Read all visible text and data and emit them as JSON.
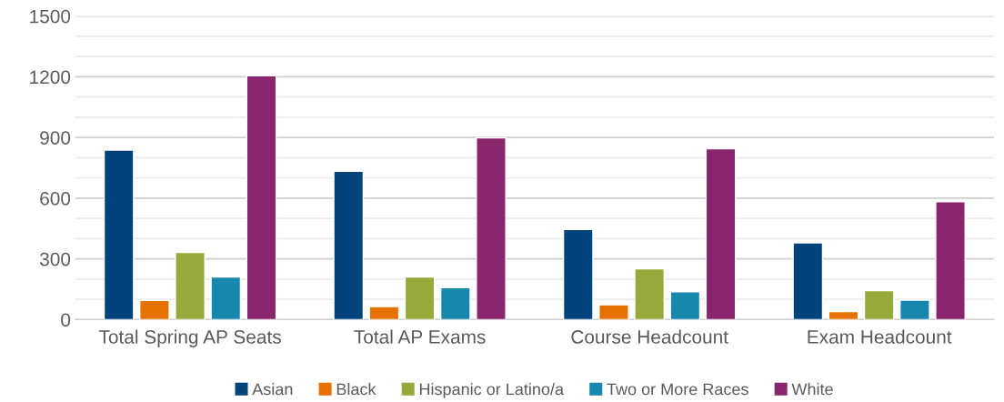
{
  "chart_data": {
    "type": "bar",
    "categories": [
      "Total Spring AP Seats",
      "Total AP Exams",
      "Course Headcount",
      "Exam Headcount"
    ],
    "series": [
      {
        "name": "Asian",
        "color": "#00427a",
        "values": [
          838,
          733,
          445,
          379
        ]
      },
      {
        "name": "Black",
        "color": "#e57200",
        "values": [
          95,
          64,
          73,
          40
        ]
      },
      {
        "name": "Hispanic or Latino/a",
        "color": "#97a93b",
        "values": [
          332,
          211,
          251,
          143
        ]
      },
      {
        "name": "Two or More Races",
        "color": "#1887ae",
        "values": [
          211,
          158,
          138,
          96
        ]
      },
      {
        "name": "White",
        "color": "#88256c",
        "values": [
          1205,
          898,
          844,
          582
        ]
      }
    ],
    "ylim": [
      0,
      1500
    ],
    "yticks": [
      0,
      {
        "value": 100,
        "label": null
      },
      {
        "value": 200,
        "label": null
      },
      300,
      {
        "value": 400,
        "label": null
      },
      {
        "value": 500,
        "label": null
      },
      600,
      {
        "value": 700,
        "label": null
      },
      {
        "value": 800,
        "label": null
      },
      900,
      {
        "value": 1000,
        "label": null
      },
      {
        "value": 1100,
        "label": null
      },
      1200,
      {
        "value": 1300,
        "label": null
      },
      {
        "value": 1400,
        "label": null
      },
      1500
    ],
    "grid": "y",
    "legend": "bottom"
  }
}
